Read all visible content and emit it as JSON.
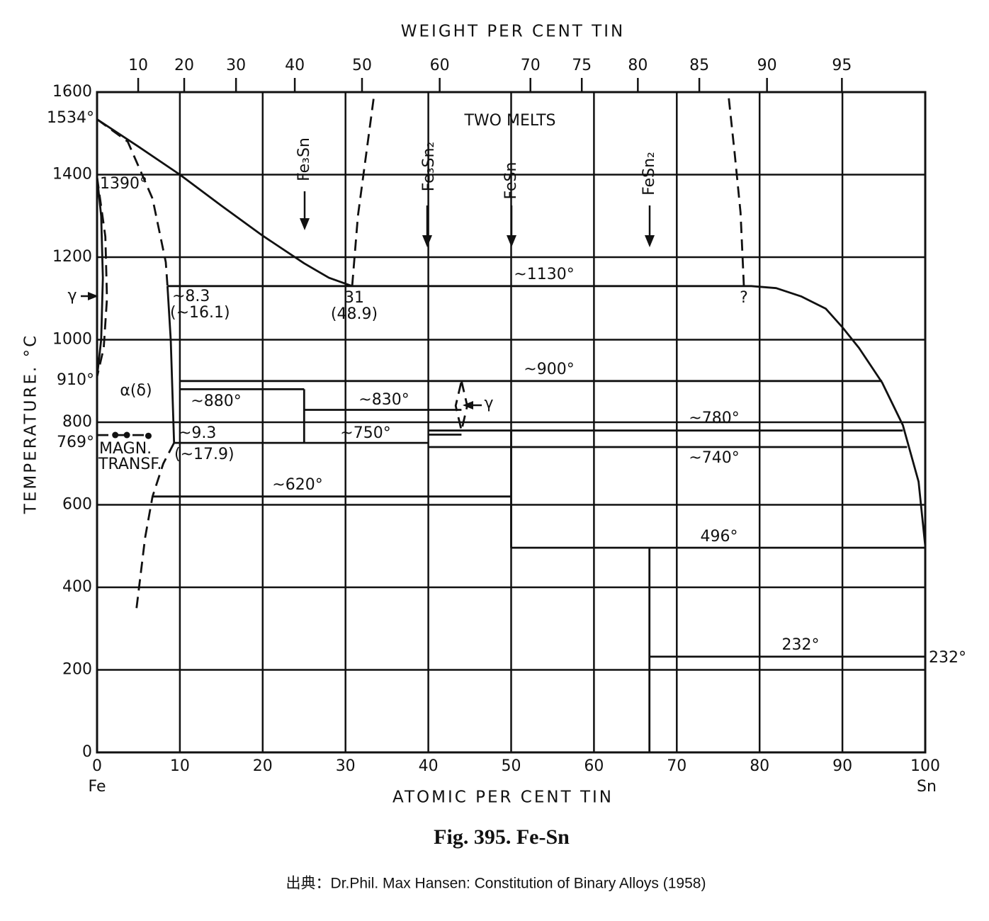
{
  "chart_data": {
    "type": "phase-diagram",
    "title": "Fig. 395. Fe-Sn",
    "source": "出典：Dr.Phil. Max Hansen: Constitution of Binary Alloys (1958)",
    "xlabel": "ATOMIC PER CENT TIN",
    "x2label": "WEIGHT PER CENT TIN",
    "ylabel": "TEMPERATURE. °C",
    "xlim": [
      0,
      100
    ],
    "xticks": [
      0,
      10,
      20,
      30,
      40,
      50,
      60,
      70,
      80,
      90,
      100
    ],
    "x2ticks": [
      10,
      20,
      30,
      40,
      50,
      60,
      70,
      75,
      80,
      85,
      90,
      95
    ],
    "ylim": [
      0,
      1600
    ],
    "yticks": [
      0,
      200,
      400,
      600,
      800,
      1000,
      1200,
      1400,
      1600
    ],
    "grid": true,
    "color": "#111111",
    "series": [
      {
        "style": "solid",
        "x": [
          0,
          5,
          10,
          15,
          20,
          25,
          28,
          30.8
        ],
        "y": [
          1534,
          1468,
          1400,
          1325,
          1252,
          1185,
          1150,
          1130
        ]
      },
      {
        "style": "dashed",
        "x": [
          0,
          3.7,
          6.7,
          8.3,
          8.5
        ],
        "y": [
          1534,
          1480,
          1342,
          1188,
          1130
        ]
      },
      {
        "style": "solid",
        "x": [
          8.5,
          8.9,
          9.3
        ],
        "y": [
          1130,
          1000,
          750
        ]
      },
      {
        "style": "dashed",
        "x": [
          9.3,
          8,
          6.7,
          5.8,
          4.7
        ],
        "y": [
          750,
          700,
          620,
          520,
          338
        ]
      },
      {
        "style": "solid",
        "x": [
          0,
          0.5,
          0.7,
          0.5,
          0
        ],
        "y": [
          1394,
          1300,
          1150,
          1000,
          910
        ]
      },
      {
        "style": "dashed",
        "x": [
          0,
          1,
          1.2,
          0.8,
          0
        ],
        "y": [
          1394,
          1250,
          1100,
          980,
          910
        ]
      },
      {
        "style": "solid",
        "x": [
          8.5,
          79,
          82,
          85,
          88,
          90,
          92,
          94.8,
          97.3,
          99.2,
          100
        ],
        "y": [
          1130,
          1130,
          1125,
          1105,
          1075,
          1030,
          980,
          896,
          793,
          656,
          500
        ]
      },
      {
        "style": "dashed",
        "x": [
          30.8,
          31.5,
          32.5,
          33.5
        ],
        "y": [
          1130,
          1300,
          1450,
          1600
        ]
      },
      {
        "style": "dashed",
        "x": [
          78.1,
          77.7,
          77,
          76.2
        ],
        "y": [
          1130,
          1308,
          1450,
          1600
        ]
      },
      {
        "style": "solid",
        "x": [
          10,
          94.8
        ],
        "y": [
          900,
          900
        ]
      },
      {
        "style": "solid",
        "x": [
          10,
          25
        ],
        "y": [
          880,
          880
        ]
      },
      {
        "style": "solid",
        "x": [
          25,
          25
        ],
        "y": [
          880,
          750
        ]
      },
      {
        "style": "solid",
        "x": [
          25,
          44
        ],
        "y": [
          830,
          830
        ]
      },
      {
        "style": "solid",
        "x": [
          9.3,
          40
        ],
        "y": [
          750,
          750
        ]
      },
      {
        "style": "solid",
        "x": [
          40,
          97.3
        ],
        "y": [
          780,
          780
        ]
      },
      {
        "style": "solid",
        "x": [
          40,
          44
        ],
        "y": [
          770,
          770
        ]
      },
      {
        "style": "solid",
        "x": [
          40,
          97.8
        ],
        "y": [
          740,
          740
        ]
      },
      {
        "style": "solid",
        "x": [
          6.7,
          50
        ],
        "y": [
          620,
          620
        ]
      },
      {
        "style": "solid",
        "x": [
          50,
          50
        ],
        "y": [
          780,
          496
        ]
      },
      {
        "style": "solid",
        "x": [
          50,
          100
        ],
        "y": [
          496,
          496
        ]
      },
      {
        "style": "solid",
        "x": [
          66.7,
          66.7
        ],
        "y": [
          496,
          0
        ]
      },
      {
        "style": "solid",
        "x": [
          66.7,
          100
        ],
        "y": [
          232,
          232
        ]
      },
      {
        "style": "dashed",
        "x": [
          44,
          44.7,
          44,
          43.3,
          44
        ],
        "y": [
          900,
          840,
          780,
          840,
          900
        ]
      },
      {
        "style": "dashed",
        "x": [
          0,
          6.5
        ],
        "y": [
          769,
          769
        ]
      },
      {
        "style": "dots",
        "x": [
          2.2,
          3.6,
          6.2
        ],
        "y": [
          769,
          769,
          767
        ]
      }
    ],
    "annotations": [
      "1534°",
      "1390°",
      "910°",
      "769°",
      "γ",
      "~8.3",
      "(~16.1)",
      "31",
      "(48.9)",
      "TWO MELTS",
      "Fe₃Sn",
      "Fe₃Sn₂",
      "FeSn",
      "FeSn₂",
      "~1130°",
      "?",
      "α(δ)",
      "~880°",
      "~830°",
      "γ",
      "~900°",
      "~750°",
      "~9.3",
      "(~17.9)",
      "MAGN.",
      "TRANSF.",
      "~620°",
      "~780°",
      "~740°",
      "496°",
      "232°",
      "232°",
      "Fe",
      "Sn"
    ]
  }
}
